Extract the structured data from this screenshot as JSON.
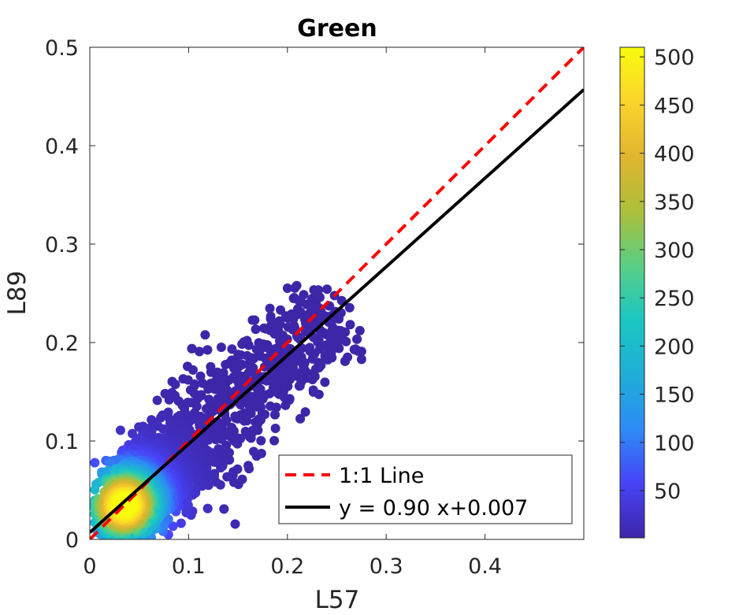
{
  "chart_data": {
    "type": "scatter",
    "title": "Green",
    "xlabel": "L57",
    "ylabel": "L89",
    "xlim": [
      0,
      0.5
    ],
    "ylim": [
      0,
      0.5
    ],
    "xticks": [
      0,
      0.1,
      0.2,
      0.3,
      0.4
    ],
    "xtick_labels": [
      "0",
      "0.1",
      "0.2",
      "0.3",
      "0.4"
    ],
    "yticks": [
      0,
      0.1,
      0.2,
      0.3,
      0.4,
      0.5
    ],
    "ytick_labels": [
      "0",
      "0.1",
      "0.2",
      "0.3",
      "0.4",
      "0.5"
    ],
    "grid": false,
    "density_scatter": {
      "description_colormap": "parula",
      "peak_center": [
        0.035,
        0.035
      ],
      "points_extent_x": [
        0.005,
        0.275
      ],
      "points_extent_y": [
        0.0,
        0.275
      ]
    },
    "colorbar": {
      "min": 1,
      "max": 510,
      "ticks": [
        50,
        100,
        150,
        200,
        250,
        300,
        350,
        400,
        450,
        500
      ],
      "tick_labels": [
        "50",
        "100",
        "150",
        "200",
        "250",
        "300",
        "350",
        "400",
        "450",
        "500"
      ],
      "colors": [
        "#3e26a8",
        "#4743f8",
        "#2d8cf5",
        "#1faed7",
        "#1ac7c2",
        "#59ce84",
        "#aebf3a",
        "#e1b52f",
        "#fbd42b",
        "#f9fb0e"
      ]
    },
    "series": [
      {
        "name": "1:1 Line",
        "kind": "line",
        "style": "dashed",
        "color": "#ff0000",
        "slope": 1.0,
        "intercept": 0.0,
        "x_range": [
          0,
          0.5
        ]
      },
      {
        "name": "y = 0.90 x+0.007",
        "kind": "line",
        "style": "solid",
        "color": "#000000",
        "slope": 0.9,
        "intercept": 0.007,
        "x_range": [
          0,
          0.5
        ]
      }
    ],
    "legend_position": "lower-right"
  }
}
